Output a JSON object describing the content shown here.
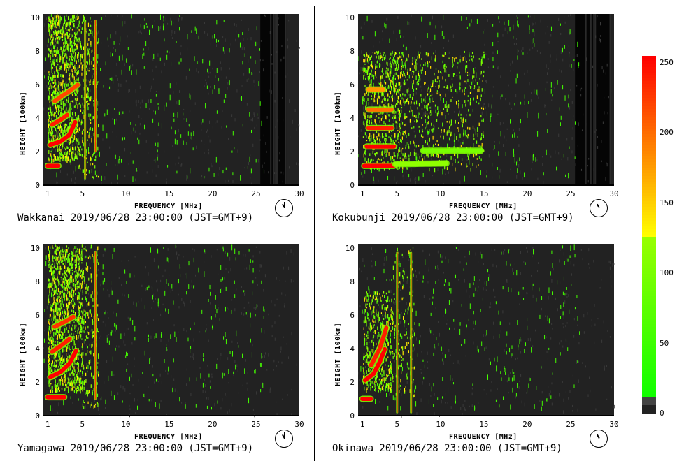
{
  "chart_data": [
    {
      "type": "heatmap",
      "station": "Wakkanai",
      "caption": "Wakkanai 2019/06/28 23:00:00 (JST=GMT+9)",
      "xlabel": "FREQUENCY [MHz]",
      "ylabel": "HEIGHT [100km]",
      "xlim": [
        0.5,
        30
      ],
      "ylim": [
        0,
        10.2
      ],
      "xticks": [
        1,
        5,
        10,
        15,
        20,
        25,
        30
      ],
      "yticks": [
        0,
        2,
        4,
        6,
        8,
        10
      ],
      "clock_time": "23:00",
      "traces": [
        {
          "level": 255,
          "x": [
            1.0,
            2.3
          ],
          "y": [
            1.15,
            1.15
          ]
        },
        {
          "level": 255,
          "x": [
            1.3,
            2.5,
            3.5,
            4.2
          ],
          "y": [
            2.4,
            2.6,
            3.0,
            3.8
          ]
        },
        {
          "level": 240,
          "x": [
            1.5,
            2.5,
            3.3
          ],
          "y": [
            3.6,
            3.9,
            4.2
          ]
        },
        {
          "level": 220,
          "x": [
            1.8,
            2.6,
            3.5,
            4.5
          ],
          "y": [
            5.0,
            5.3,
            5.6,
            6.0
          ]
        },
        {
          "level": 230,
          "x": [
            6.5,
            6.5
          ],
          "y": [
            2.0,
            10.2
          ]
        },
        {
          "level": 255,
          "x": [
            5.3,
            5.3
          ],
          "y": [
            0.4,
            10.2
          ]
        }
      ],
      "cloud": [
        {
          "x": [
            1,
            4.5
          ],
          "y": [
            1.5,
            10.2
          ],
          "density": 0.55
        },
        {
          "x": [
            4.5,
            6.8
          ],
          "y": [
            0.5,
            10.2
          ],
          "density": 0.18
        }
      ],
      "dark_band_x": [
        25.5,
        28.5
      ]
    },
    {
      "type": "heatmap",
      "station": "Kokubunji",
      "caption": "Kokubunji 2019/06/28 23:00:00 (JST=GMT+9)",
      "xlabel": "FREQUENCY [MHz]",
      "ylabel": "HEIGHT [100km]",
      "xlim": [
        0.5,
        30
      ],
      "ylim": [
        0,
        10.2
      ],
      "xticks": [
        1,
        5,
        10,
        15,
        20,
        25,
        30
      ],
      "yticks": [
        0,
        2,
        4,
        6,
        8,
        10
      ],
      "clock_time": "23:00",
      "traces": [
        {
          "level": 255,
          "x": [
            1.2,
            4.8
          ],
          "y": [
            1.15,
            1.15
          ]
        },
        {
          "level": 120,
          "x": [
            4.8,
            11.0
          ],
          "y": [
            1.25,
            1.3
          ]
        },
        {
          "level": 255,
          "x": [
            1.5,
            4.8
          ],
          "y": [
            2.3,
            2.3
          ]
        },
        {
          "level": 100,
          "x": [
            8.0,
            15.0
          ],
          "y": [
            2.05,
            2.05
          ]
        },
        {
          "level": 240,
          "x": [
            1.7,
            4.5
          ],
          "y": [
            3.4,
            3.4
          ]
        },
        {
          "level": 200,
          "x": [
            1.7,
            4.5
          ],
          "y": [
            4.5,
            4.5
          ]
        },
        {
          "level": 180,
          "x": [
            1.7,
            3.5
          ],
          "y": [
            5.7,
            5.7
          ]
        }
      ],
      "cloud": [
        {
          "x": [
            1,
            6
          ],
          "y": [
            1.0,
            8.0
          ],
          "density": 0.3
        },
        {
          "x": [
            6,
            15
          ],
          "y": [
            1.0,
            8.0
          ],
          "density": 0.12
        }
      ],
      "dark_band_x": [
        25.5,
        29.5
      ]
    },
    {
      "type": "heatmap",
      "station": "Yamagawa",
      "caption": "Yamagawa 2019/06/28 23:00:00 (JST=GMT+9)",
      "xlabel": "FREQUENCY [MHz]",
      "ylabel": "HEIGHT [100km]",
      "xlim": [
        0.5,
        30
      ],
      "ylim": [
        0,
        10.2
      ],
      "xticks": [
        1,
        5,
        10,
        15,
        20,
        25,
        30
      ],
      "yticks": [
        0,
        2,
        4,
        6,
        8,
        10
      ],
      "clock_time": "23:00",
      "traces": [
        {
          "level": 255,
          "x": [
            1.0,
            3.0
          ],
          "y": [
            1.1,
            1.1
          ]
        },
        {
          "level": 255,
          "x": [
            1.3,
            2.5,
            3.5,
            4.3
          ],
          "y": [
            2.3,
            2.6,
            3.1,
            3.9
          ]
        },
        {
          "level": 240,
          "x": [
            1.5,
            2.6,
            3.6
          ],
          "y": [
            3.8,
            4.2,
            4.6
          ]
        },
        {
          "level": 230,
          "x": [
            1.8,
            3.0,
            4.0
          ],
          "y": [
            5.3,
            5.6,
            5.9
          ]
        },
        {
          "level": 220,
          "x": [
            6.5,
            6.5
          ],
          "y": [
            1.0,
            10.2
          ]
        }
      ],
      "cloud": [
        {
          "x": [
            1,
            5
          ],
          "y": [
            1.5,
            10.2
          ],
          "density": 0.55
        },
        {
          "x": [
            5,
            6.8
          ],
          "y": [
            0.5,
            10.2
          ],
          "density": 0.2
        }
      ],
      "dark_band_x": null
    },
    {
      "type": "heatmap",
      "station": "Okinawa",
      "caption": "Okinawa 2019/06/28 23:00:00 (JST=GMT+9)",
      "xlabel": "FREQUENCY [MHz]",
      "ylabel": "HEIGHT [100km]",
      "xlim": [
        0.5,
        30
      ],
      "ylim": [
        0,
        10.2
      ],
      "xticks": [
        1,
        5,
        10,
        15,
        20,
        25,
        30
      ],
      "yticks": [
        0,
        2,
        4,
        6,
        8,
        10
      ],
      "clock_time": "23:00",
      "traces": [
        {
          "level": 255,
          "x": [
            1.0,
            2.0
          ],
          "y": [
            1.0,
            1.0
          ]
        },
        {
          "level": 255,
          "x": [
            1.3,
            2.3,
            3.0,
            3.6
          ],
          "y": [
            2.1,
            2.5,
            3.2,
            4.0
          ]
        },
        {
          "level": 240,
          "x": [
            2.0,
            3.0,
            3.8
          ],
          "y": [
            3.0,
            4.0,
            5.3
          ]
        },
        {
          "level": 255,
          "x": [
            5.0,
            5.0
          ],
          "y": [
            0.2,
            10.2
          ]
        },
        {
          "level": 240,
          "x": [
            6.6,
            6.6
          ],
          "y": [
            0.2,
            10.2
          ]
        }
      ],
      "cloud": [
        {
          "x": [
            1,
            4.5
          ],
          "y": [
            1.5,
            7.5
          ],
          "density": 0.35
        },
        {
          "x": [
            4.5,
            7
          ],
          "y": [
            1.0,
            10.2
          ],
          "density": 0.1
        }
      ],
      "dark_band_x": null
    }
  ],
  "colorbar": {
    "ticks": [
      250,
      200,
      150,
      100,
      50,
      0
    ],
    "range": [
      0,
      255
    ],
    "colors": {
      "low": "#00ff00",
      "mid": "#ffff00",
      "high": "#ff0000",
      "floor": "#222222"
    }
  },
  "colors": {
    "background": "#222222",
    "noise": "#44ff00",
    "strong": "#ff1a00"
  }
}
